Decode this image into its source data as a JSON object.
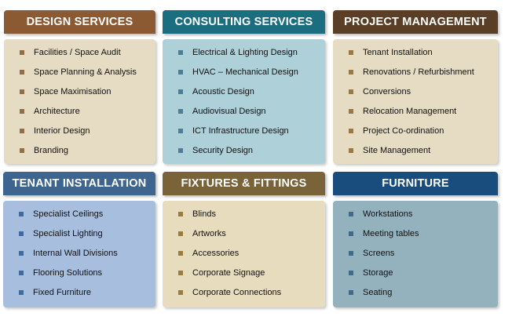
{
  "panels": [
    {
      "title": "DESIGN SERVICES",
      "header_color": "#8b5a33",
      "body_color": "#e6dcc3",
      "bullet_color": "#8e6f47",
      "items": [
        "Facilities / Space Audit",
        "Space Planning & Analysis",
        "Space Maximisation",
        "Architecture",
        "Interior Design",
        "Branding"
      ]
    },
    {
      "title": "CONSULTING SERVICES",
      "header_color": "#1b6e80",
      "body_color": "#aed0d8",
      "bullet_color": "#4f7c96",
      "items": [
        "Electrical & Lighting Design",
        "HVAC – Mechanical Design",
        "Acoustic Design",
        "Audiovisual Design",
        "ICT Infrastructure Design",
        "Security Design"
      ]
    },
    {
      "title": "PROJECT MANAGEMENT",
      "header_color": "#5a3f26",
      "body_color": "#e6dcc3",
      "bullet_color": "#9a7844",
      "items": [
        "Tenant Installation",
        "Renovations / Refurbishment",
        "Conversions",
        "Relocation Management",
        "Project Co-ordination",
        "Site Management"
      ]
    },
    {
      "title": "TENANT INSTALLATION",
      "header_color": "#3d6590",
      "body_color": "#a8bede",
      "bullet_color": "#3e6aa0",
      "items": [
        "Specialist Ceilings",
        "Specialist Lighting",
        "Internal Wall Divisions",
        "Flooring Solutions",
        "Fixed Furniture"
      ]
    },
    {
      "title": "FIXTURES & FITTINGS",
      "header_color": "#7a6338",
      "body_color": "#e8dcbe",
      "bullet_color": "#9c7b3e",
      "items": [
        "Blinds",
        "Artworks",
        "Accessories",
        "Corporate Signage",
        "Corporate Connections"
      ]
    },
    {
      "title": "FURNITURE",
      "header_color": "#184d7e",
      "body_color": "#94b2bd",
      "bullet_color": "#3f6a8a",
      "items": [
        "Workstations",
        "Meeting tables",
        "Screens",
        "Storage",
        "Seating"
      ]
    }
  ]
}
